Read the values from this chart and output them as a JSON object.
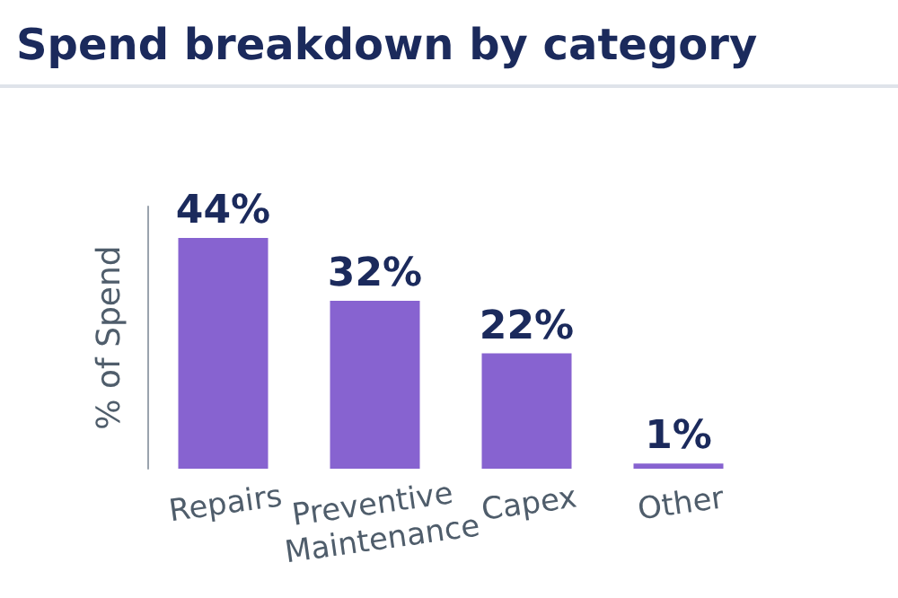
{
  "chart_data": {
    "type": "bar",
    "title": "Spend breakdown by category",
    "ylabel": "% of Spend",
    "categories": [
      "Repairs",
      "Preventive Maintenance",
      "Capex",
      "Other"
    ],
    "values": [
      44,
      32,
      22,
      1
    ],
    "color": "#8763d0",
    "value_labels": [
      "44%",
      "32%",
      "22%",
      "1%"
    ]
  }
}
